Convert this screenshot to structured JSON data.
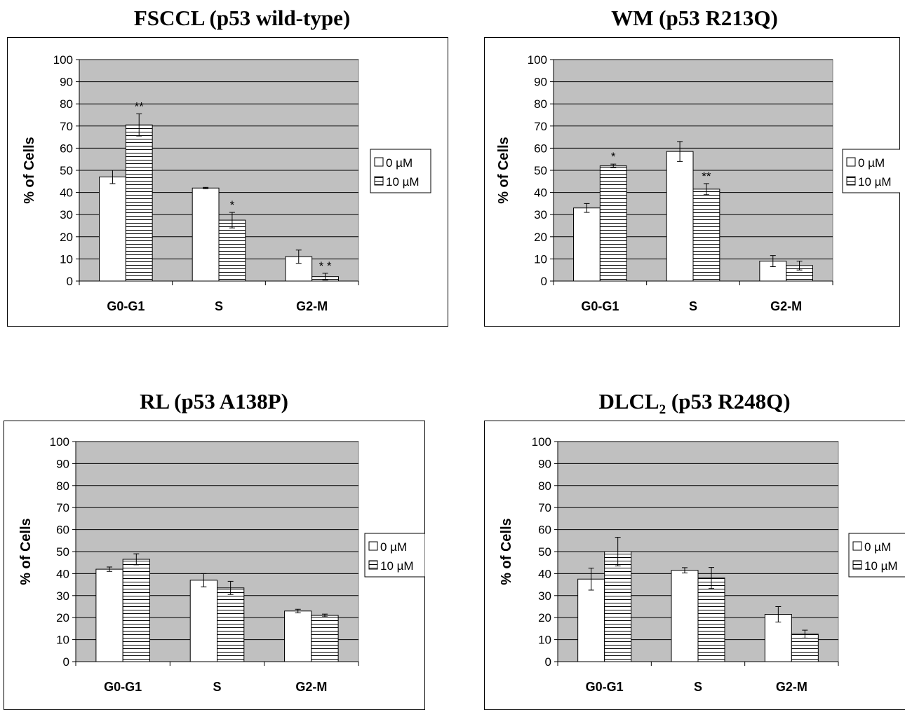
{
  "colors": {
    "plot_bg": "#c0c0c0",
    "bar_fill": "#ffffff",
    "stroke": "#000000"
  },
  "chart_data": [
    {
      "type": "bar",
      "title": "FSCCL (p53 wild-type)",
      "ylabel": "% of Cells",
      "xlabel": "",
      "ylim": [
        0,
        100
      ],
      "yticks": [
        0,
        10,
        20,
        30,
        40,
        50,
        60,
        70,
        80,
        90,
        100
      ],
      "categories": [
        "G0-G1",
        "S",
        "G2-M"
      ],
      "grid": true,
      "legend": "right",
      "series": [
        {
          "name": "0 µM",
          "pattern": "solid-white",
          "values": [
            47,
            42,
            11
          ],
          "errors": [
            3,
            0.3,
            3
          ]
        },
        {
          "name": "10 µM",
          "pattern": "horizontal-stripes",
          "values": [
            70.5,
            27.5,
            2
          ],
          "errors": [
            5,
            3.5,
            1.5
          ]
        }
      ],
      "annotations": [
        {
          "category": "G0-G1",
          "series": 1,
          "text": "**"
        },
        {
          "category": "S",
          "series": 1,
          "text": "*"
        },
        {
          "category": "G2-M",
          "series": 1,
          "text": "* *"
        }
      ]
    },
    {
      "type": "bar",
      "title": "WM (p53 R213Q)",
      "ylabel": "% of Cells",
      "xlabel": "",
      "ylim": [
        0,
        100
      ],
      "yticks": [
        0,
        10,
        20,
        30,
        40,
        50,
        60,
        70,
        80,
        90,
        100
      ],
      "categories": [
        "G0-G1",
        "S",
        "G2-M"
      ],
      "grid": true,
      "legend": "right",
      "series": [
        {
          "name": "0 µM",
          "pattern": "solid-white",
          "values": [
            33,
            58.5,
            9
          ],
          "errors": [
            2,
            4.5,
            2.5
          ]
        },
        {
          "name": "10 µM",
          "pattern": "horizontal-stripes",
          "values": [
            52,
            41.5,
            7
          ],
          "errors": [
            0.8,
            2.5,
            2
          ]
        }
      ],
      "annotations": [
        {
          "category": "G0-G1",
          "series": 1,
          "text": "*"
        },
        {
          "category": "S",
          "series": 1,
          "text": "**"
        }
      ]
    },
    {
      "type": "bar",
      "title": "RL (p53 A138P)",
      "ylabel": "% of Cells",
      "xlabel": "",
      "ylim": [
        0,
        100
      ],
      "yticks": [
        0,
        10,
        20,
        30,
        40,
        50,
        60,
        70,
        80,
        90,
        100
      ],
      "categories": [
        "G0-G1",
        "S",
        "G2-M"
      ],
      "grid": true,
      "legend": "right",
      "series": [
        {
          "name": "0 µM",
          "pattern": "solid-white",
          "values": [
            42,
            37,
            23
          ],
          "errors": [
            1,
            3,
            0.8
          ]
        },
        {
          "name": "10 µM",
          "pattern": "horizontal-stripes",
          "values": [
            46.5,
            33.5,
            21
          ],
          "errors": [
            2.5,
            3,
            0.6
          ]
        }
      ],
      "annotations": []
    },
    {
      "type": "bar",
      "title": "DLCL₂ (p53 R248Q)",
      "title_main": "DLCL",
      "title_sub": "2",
      "title_rest": " (p53 R248Q)",
      "ylabel": "% of Cells",
      "xlabel": "",
      "ylim": [
        0,
        100
      ],
      "yticks": [
        0,
        10,
        20,
        30,
        40,
        50,
        60,
        70,
        80,
        90,
        100
      ],
      "categories": [
        "G0-G1",
        "S",
        "G2-M"
      ],
      "grid": true,
      "legend": "right",
      "series": [
        {
          "name": "0 µM",
          "pattern": "solid-white",
          "values": [
            37.5,
            41.5,
            21.5
          ],
          "errors": [
            5,
            1.2,
            3.5
          ]
        },
        {
          "name": "10 µM",
          "pattern": "horizontal-stripes",
          "values": [
            50,
            38,
            12.5
          ],
          "errors": [
            6.5,
            4.8,
            1.8
          ]
        }
      ],
      "annotations": []
    }
  ]
}
